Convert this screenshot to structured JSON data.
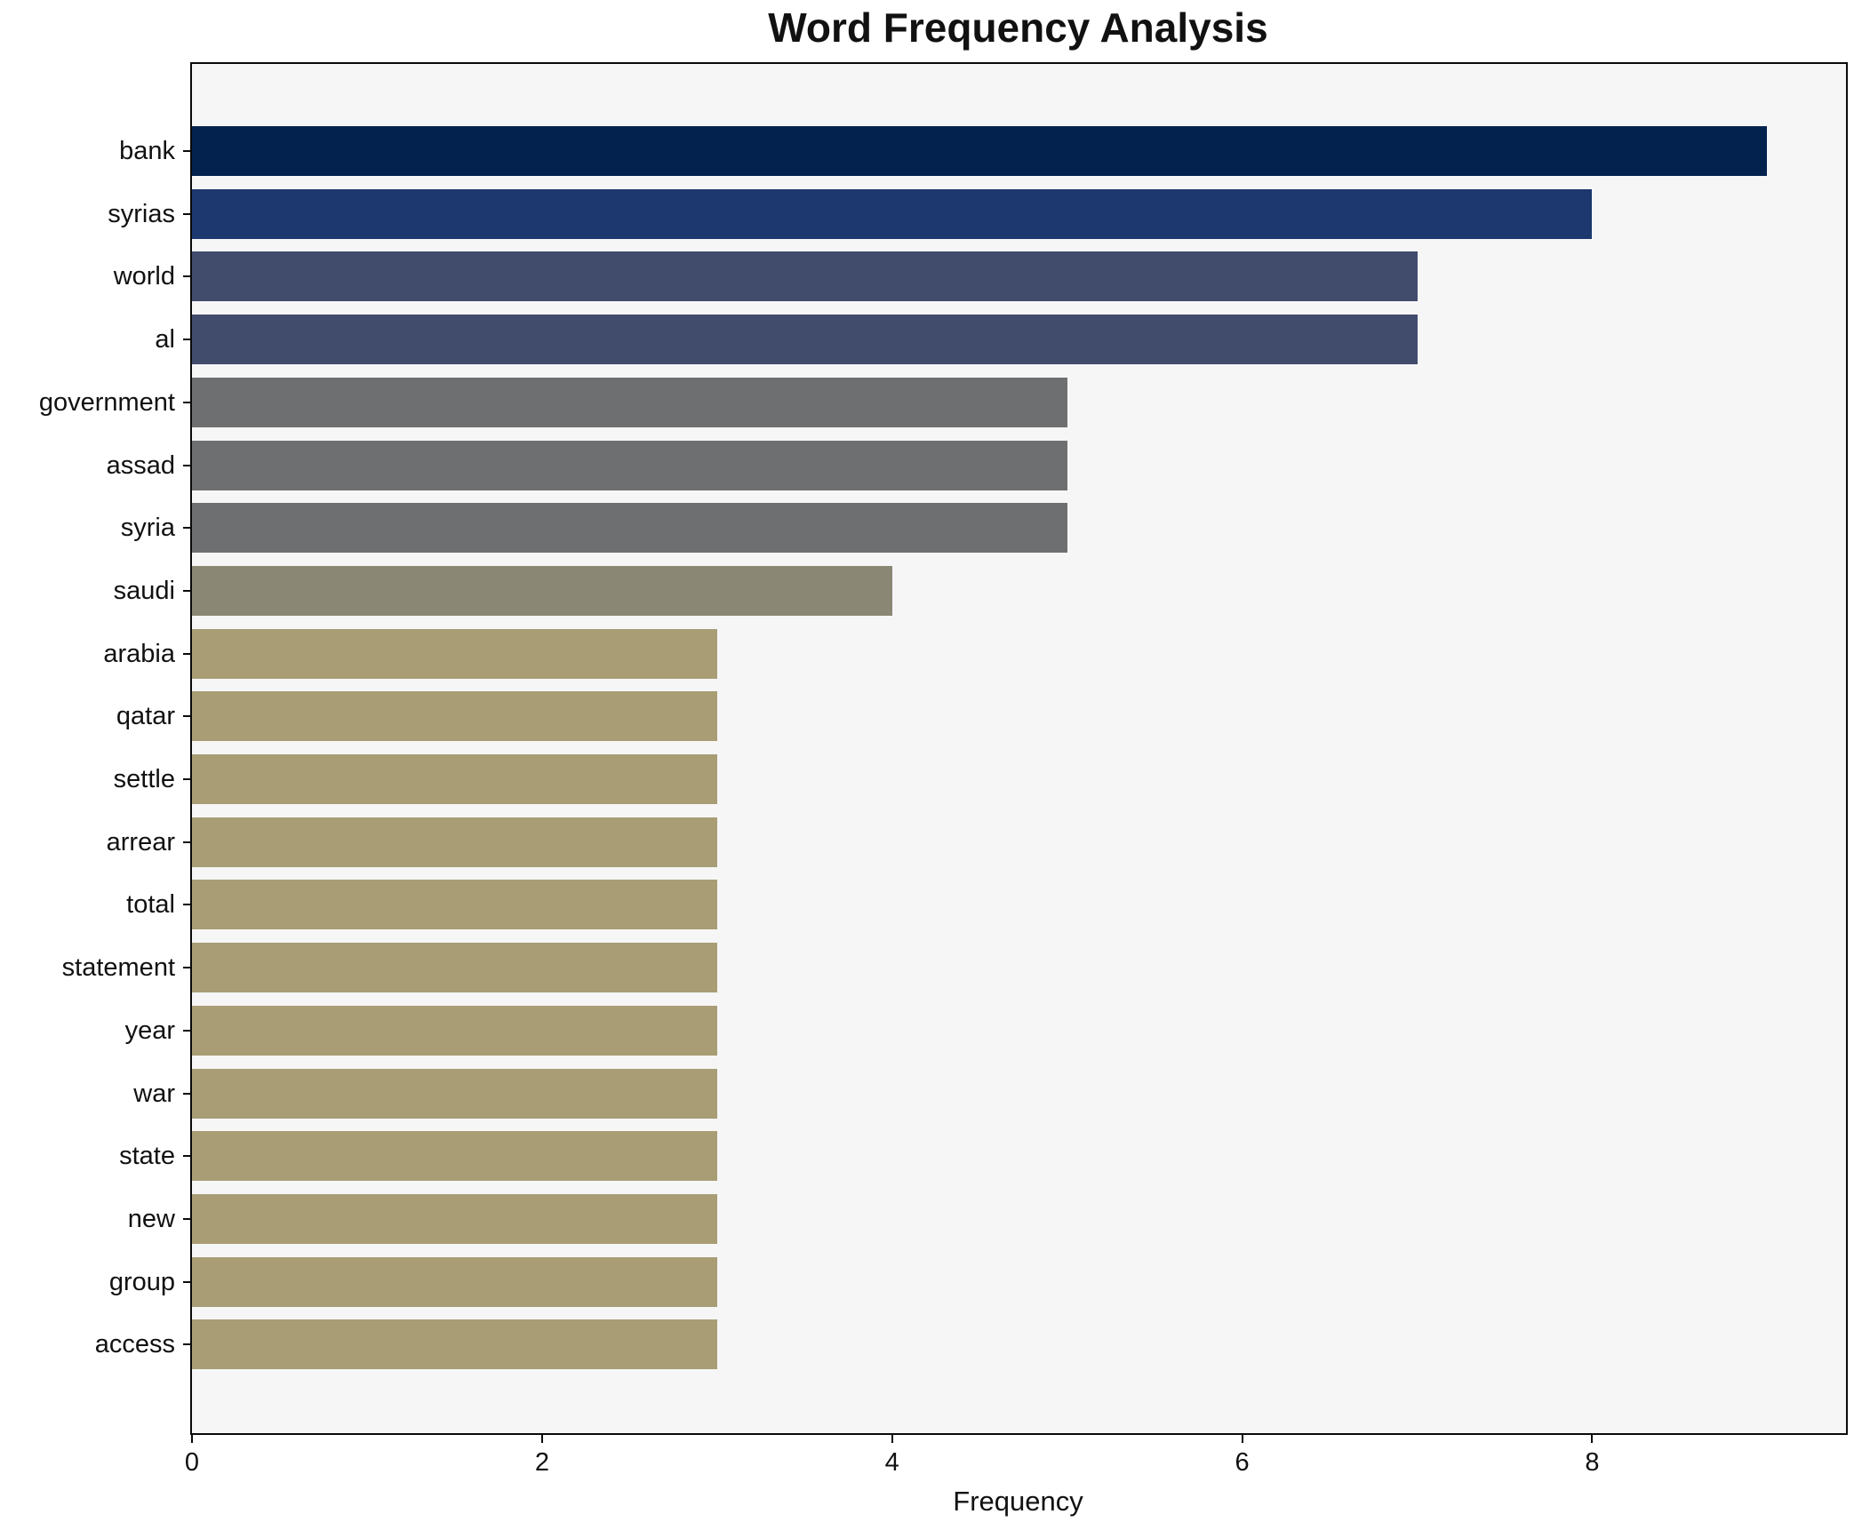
{
  "chart_data": {
    "type": "bar",
    "orientation": "horizontal",
    "title": "Word Frequency Analysis",
    "xlabel": "Frequency",
    "ylabel": "",
    "categories": [
      "bank",
      "syrias",
      "world",
      "al",
      "government",
      "assad",
      "syria",
      "saudi",
      "arabia",
      "qatar",
      "settle",
      "arrear",
      "total",
      "statement",
      "year",
      "war",
      "state",
      "new",
      "group",
      "access"
    ],
    "values": [
      9,
      8,
      7,
      7,
      5,
      5,
      5,
      4,
      3,
      3,
      3,
      3,
      3,
      3,
      3,
      3,
      3,
      3,
      3,
      3
    ],
    "bar_colors": [
      "#03224e",
      "#1c386e",
      "#414b6c",
      "#414b6c",
      "#6e6f71",
      "#6e6f71",
      "#6e6f71",
      "#8b8775",
      "#a89d74",
      "#a89d74",
      "#a89d74",
      "#a89d74",
      "#a89d74",
      "#a89d74",
      "#a89d74",
      "#a89d74",
      "#a89d74",
      "#a89d74",
      "#a89d74",
      "#a89d74"
    ],
    "xlim": [
      0,
      9.45
    ],
    "xticks": [
      0,
      2,
      4,
      6,
      8
    ],
    "grid": false,
    "legend_position": "none",
    "plot_background": "#f6f6f7",
    "figure_background": "#ffffff",
    "spine_color": "#0a0a0a"
  }
}
